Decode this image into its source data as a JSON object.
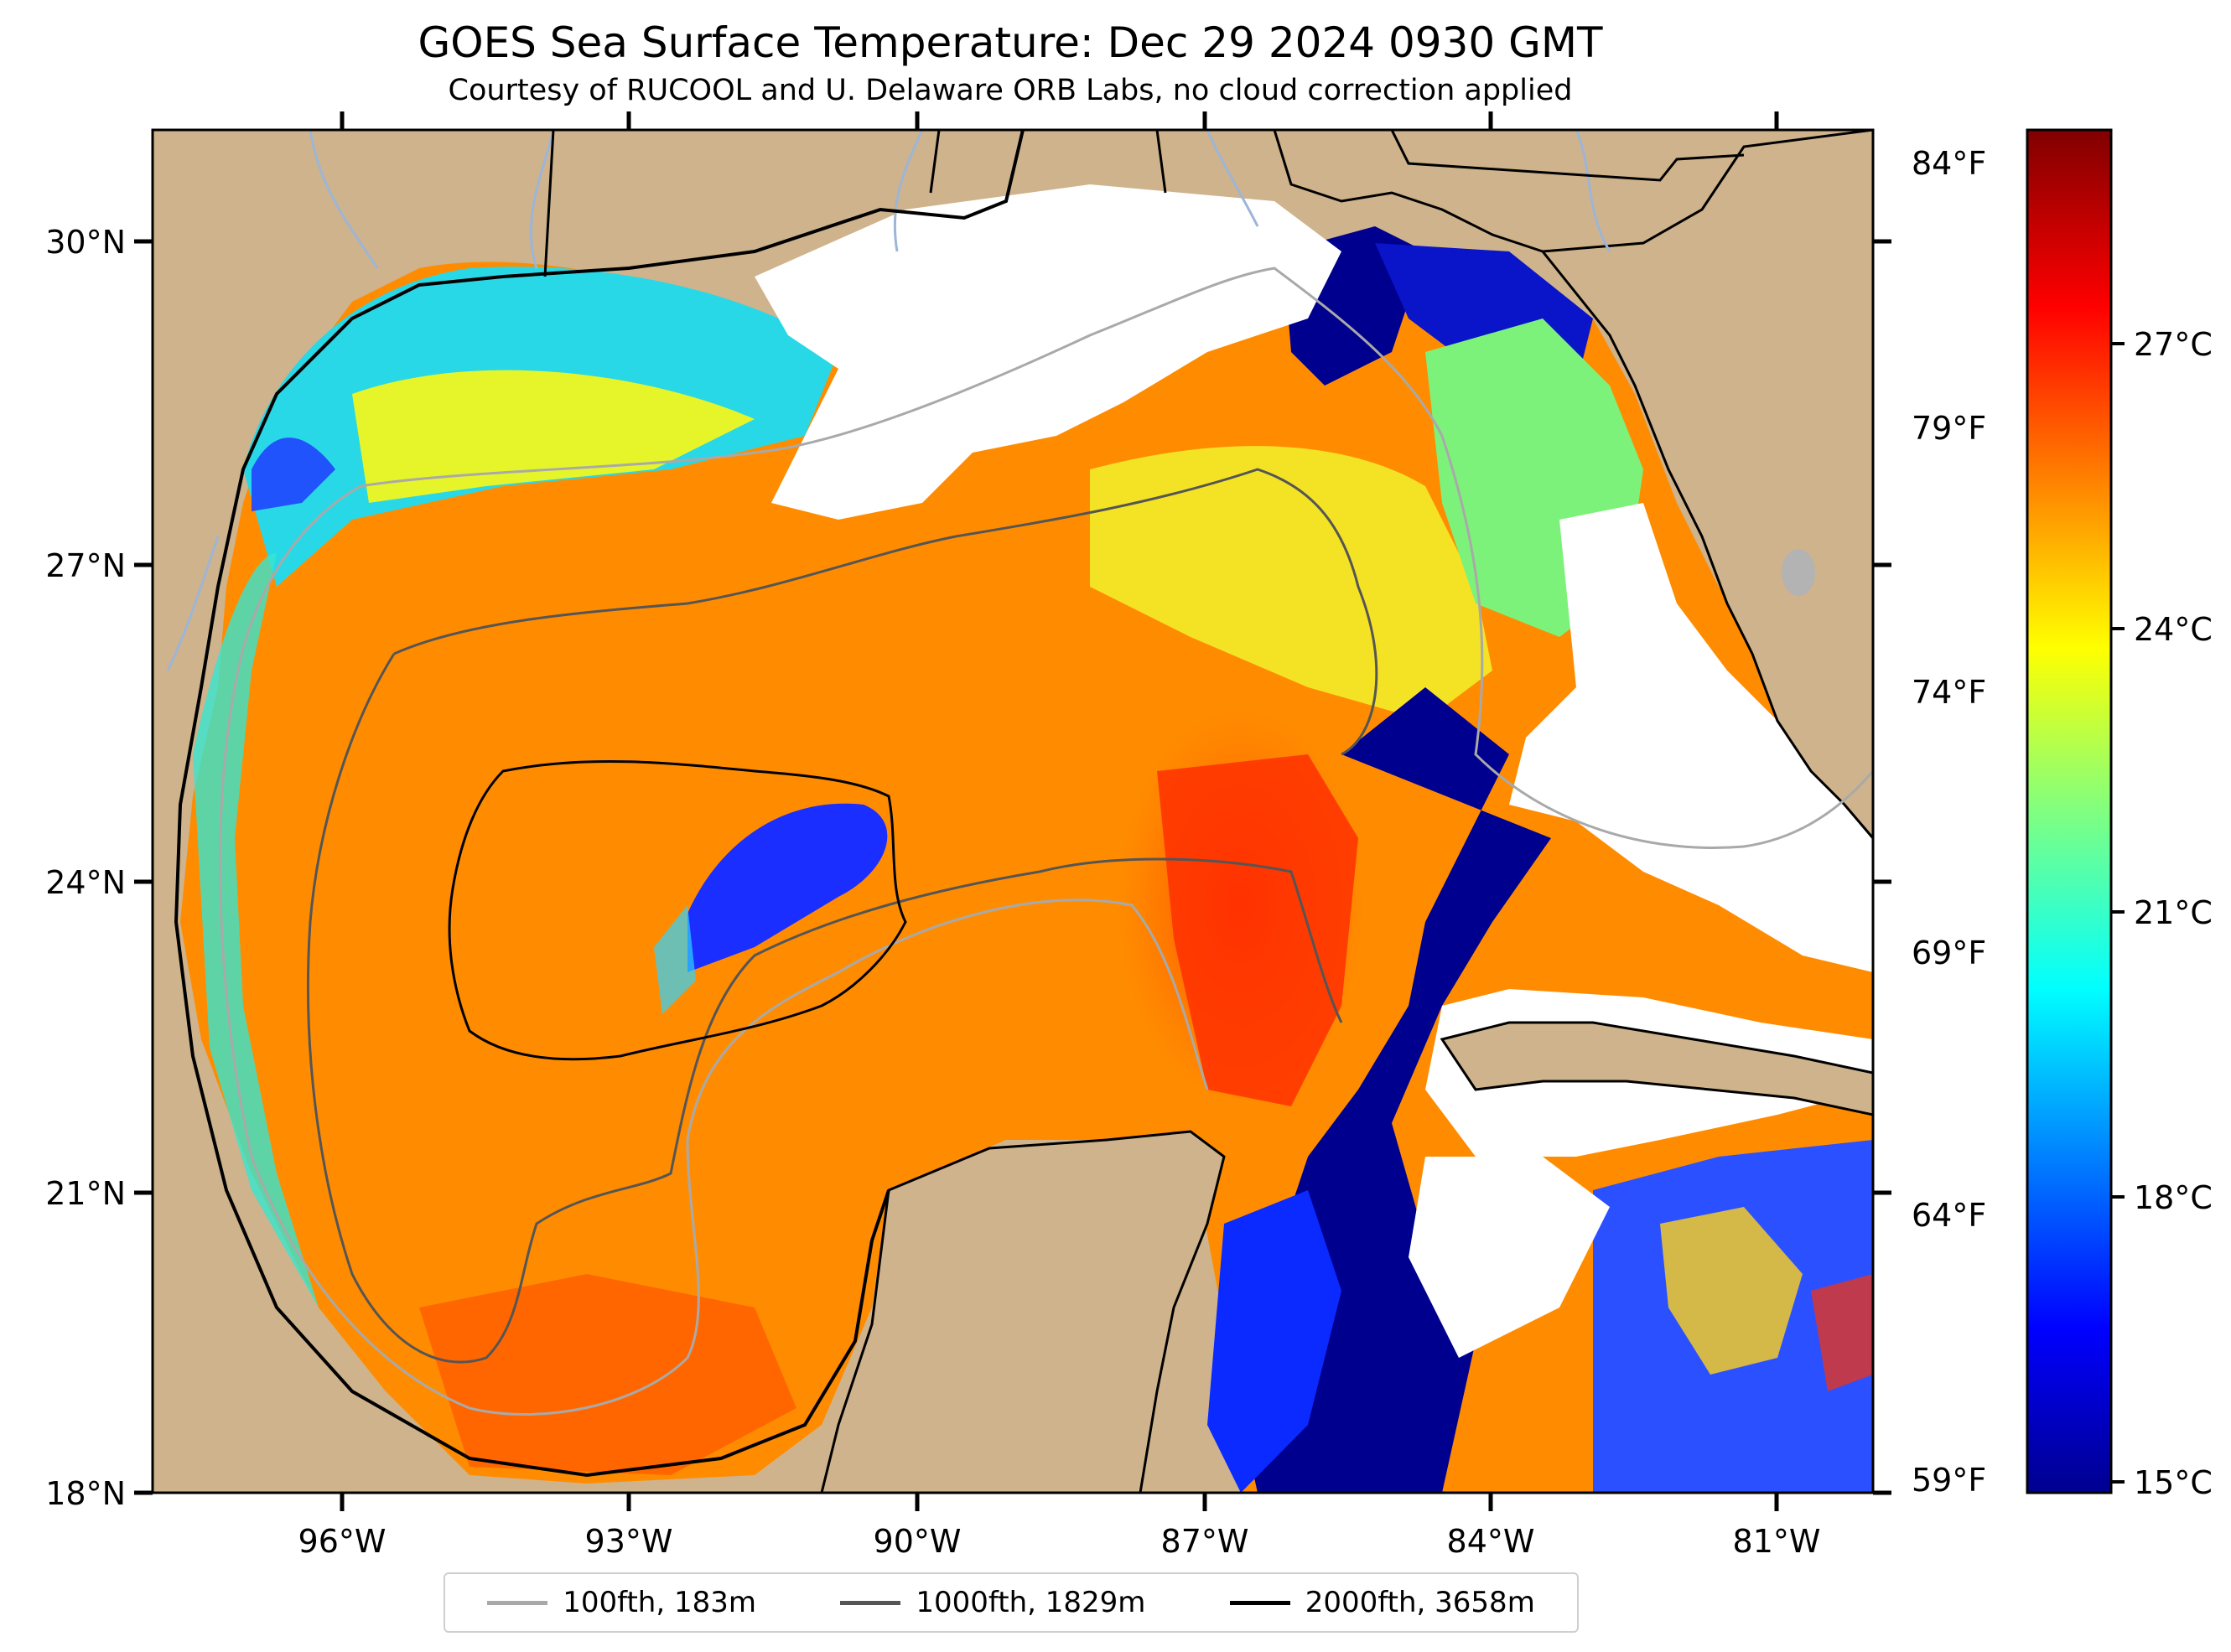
{
  "title": "GOES Sea Surface Temperature: Dec 29 2024 0930 GMT",
  "subtitle": "Courtesy of RUCOOL and U. Delaware ORB Labs, no cloud correction applied",
  "map": {
    "lat_ticks": [
      "30°N",
      "27°N",
      "24°N",
      "21°N",
      "18°N"
    ],
    "lon_ticks": [
      "96°W",
      "93°W",
      "90°W",
      "87°W",
      "84°W",
      "81°W"
    ],
    "colors": {
      "land": "#cfb38c",
      "cloud": "#ffffff",
      "coast": "#000000",
      "rivers": "#9db5d6"
    }
  },
  "colorbar": {
    "celsius_ticks": [
      "27°C",
      "24°C",
      "21°C",
      "18°C",
      "15°C"
    ],
    "fahrenheit_ticks": [
      "84°F",
      "79°F",
      "74°F",
      "69°F",
      "64°F",
      "59°F"
    ],
    "range_celsius": [
      14.8,
      29.0
    ],
    "colormap": "jet"
  },
  "legend": [
    {
      "label": "100fth, 183m",
      "color": "#a9a9a9"
    },
    {
      "label": "1000fth, 1829m",
      "color": "#555555"
    },
    {
      "label": "2000fth, 3658m",
      "color": "#000000"
    }
  ]
}
